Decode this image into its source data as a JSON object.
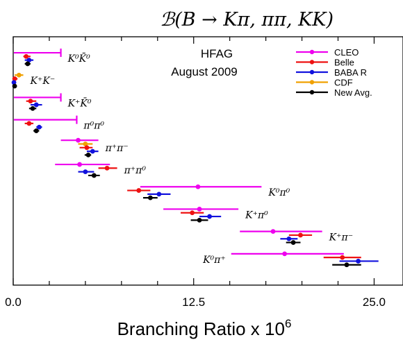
{
  "chart_data": {
    "type": "scatter",
    "title": "ℬ(B → Kπ, ππ, KK)",
    "xlabel": "Branching Ratio x 10",
    "xlabel_exp": "6",
    "xlim": [
      0,
      27
    ],
    "xticks": [
      {
        "value": 0,
        "label": "0.0"
      },
      {
        "value": 12.5,
        "label": "12.5"
      },
      {
        "value": 25,
        "label": "25.0"
      }
    ],
    "annotation": [
      "HFAG",
      "August 2009"
    ],
    "legend": [
      {
        "name": "CLEO",
        "color": "#ee00ee"
      },
      {
        "name": "Belle",
        "color": "#ee1111"
      },
      {
        "name": "BABA R",
        "color": "#1111dd"
      },
      {
        "name": "CDF",
        "color": "#f0a000"
      },
      {
        "name": "New Avg.",
        "color": "#000000"
      }
    ],
    "experiment_colors": {
      "CLEO": "#ee00ee",
      "Belle": "#ee1111",
      "BABAR": "#1111dd",
      "CDF": "#f0a000",
      "Avg": "#000000"
    },
    "processes": [
      {
        "label": "K⁰K̄⁰",
        "label_side": "right",
        "measurements": [
          {
            "exp": "CLEO",
            "value": 0,
            "low": 0,
            "high": 3.3,
            "upper_limit": true
          },
          {
            "exp": "Belle",
            "value": 0.9,
            "low": 0.7,
            "high": 1.2
          },
          {
            "exp": "BABAR",
            "value": 1.1,
            "low": 0.8,
            "high": 1.4
          },
          {
            "exp": "Avg",
            "value": 1.0,
            "low": 0.8,
            "high": 1.2
          }
        ]
      },
      {
        "label": "K⁺K⁻",
        "label_side": "right",
        "measurements": [
          {
            "exp": "CDF",
            "value": 0.4,
            "low": 0.1,
            "high": 0.7
          },
          {
            "exp": "Belle",
            "value": 0.1,
            "low": -0.1,
            "high": 0.3
          },
          {
            "exp": "BABAR",
            "value": 0.05,
            "low": -0.1,
            "high": 0.2
          },
          {
            "exp": "Avg",
            "value": 0.1,
            "low": 0.0,
            "high": 0.15
          }
        ]
      },
      {
        "label": "K⁺K̄⁰",
        "label_side": "right",
        "measurements": [
          {
            "exp": "CLEO",
            "value": 0,
            "low": 0,
            "high": 3.3,
            "upper_limit": true
          },
          {
            "exp": "Belle",
            "value": 1.2,
            "low": 0.9,
            "high": 1.6
          },
          {
            "exp": "BABAR",
            "value": 1.6,
            "low": 1.2,
            "high": 2.0
          },
          {
            "exp": "Avg",
            "value": 1.35,
            "low": 1.1,
            "high": 1.6
          }
        ]
      },
      {
        "label": "π⁰π⁰",
        "label_side": "right",
        "measurements": [
          {
            "exp": "CLEO",
            "value": 0,
            "low": 0,
            "high": 4.4,
            "upper_limit": true
          },
          {
            "exp": "Belle",
            "value": 1.1,
            "low": 0.8,
            "high": 1.4
          },
          {
            "exp": "BABAR",
            "value": 1.8,
            "low": 1.6,
            "high": 2.0
          },
          {
            "exp": "Avg",
            "value": 1.6,
            "low": 1.4,
            "high": 1.8
          }
        ]
      },
      {
        "label": "π⁺π⁻",
        "label_side": "right",
        "measurements": [
          {
            "exp": "CLEO",
            "value": 4.5,
            "low": 3.3,
            "high": 5.9
          },
          {
            "exp": "CDF",
            "value": 5.0,
            "low": 4.5,
            "high": 5.5
          },
          {
            "exp": "Belle",
            "value": 5.1,
            "low": 4.6,
            "high": 5.5
          },
          {
            "exp": "BABAR",
            "value": 5.5,
            "low": 5.1,
            "high": 5.9
          },
          {
            "exp": "Avg",
            "value": 5.2,
            "low": 4.95,
            "high": 5.4
          }
        ]
      },
      {
        "label": "π⁺π⁰",
        "label_side": "right",
        "measurements": [
          {
            "exp": "CLEO",
            "value": 4.6,
            "low": 2.9,
            "high": 6.7
          },
          {
            "exp": "Belle",
            "value": 6.5,
            "low": 5.9,
            "high": 7.2
          },
          {
            "exp": "BABAR",
            "value": 5.0,
            "low": 4.5,
            "high": 5.6
          },
          {
            "exp": "Avg",
            "value": 5.6,
            "low": 5.2,
            "high": 6.0
          }
        ]
      },
      {
        "label": "K⁰π⁰",
        "label_side": "right",
        "measurements": [
          {
            "exp": "CLEO",
            "value": 12.8,
            "low": 8.8,
            "high": 17.2
          },
          {
            "exp": "Belle",
            "value": 8.7,
            "low": 7.9,
            "high": 9.5
          },
          {
            "exp": "BABAR",
            "value": 10.1,
            "low": 9.3,
            "high": 10.9
          },
          {
            "exp": "Avg",
            "value": 9.5,
            "low": 9.0,
            "high": 10.0
          }
        ]
      },
      {
        "label": "K⁺π⁰",
        "label_side": "right",
        "measurements": [
          {
            "exp": "CLEO",
            "value": 12.9,
            "low": 10.4,
            "high": 15.6
          },
          {
            "exp": "Belle",
            "value": 12.4,
            "low": 11.6,
            "high": 13.2
          },
          {
            "exp": "BABAR",
            "value": 13.6,
            "low": 12.9,
            "high": 14.4
          },
          {
            "exp": "Avg",
            "value": 12.9,
            "low": 12.3,
            "high": 13.5
          }
        ]
      },
      {
        "label": "K⁺π⁻",
        "label_side": "right",
        "measurements": [
          {
            "exp": "CLEO",
            "value": 18.0,
            "low": 15.7,
            "high": 21.4
          },
          {
            "exp": "Belle",
            "value": 19.9,
            "low": 19.1,
            "high": 20.7
          },
          {
            "exp": "BABAR",
            "value": 19.1,
            "low": 18.5,
            "high": 19.7
          },
          {
            "exp": "Avg",
            "value": 19.4,
            "low": 18.9,
            "high": 19.9
          }
        ]
      },
      {
        "label": "K⁰π⁺",
        "label_side": "left",
        "measurements": [
          {
            "exp": "CLEO",
            "value": 18.8,
            "low": 15.1,
            "high": 22.9
          },
          {
            "exp": "Belle",
            "value": 22.8,
            "low": 21.5,
            "high": 24.1
          },
          {
            "exp": "BABAR",
            "value": 23.9,
            "low": 22.6,
            "high": 25.3
          },
          {
            "exp": "Avg",
            "value": 23.1,
            "low": 22.1,
            "high": 24.1
          }
        ]
      }
    ]
  }
}
